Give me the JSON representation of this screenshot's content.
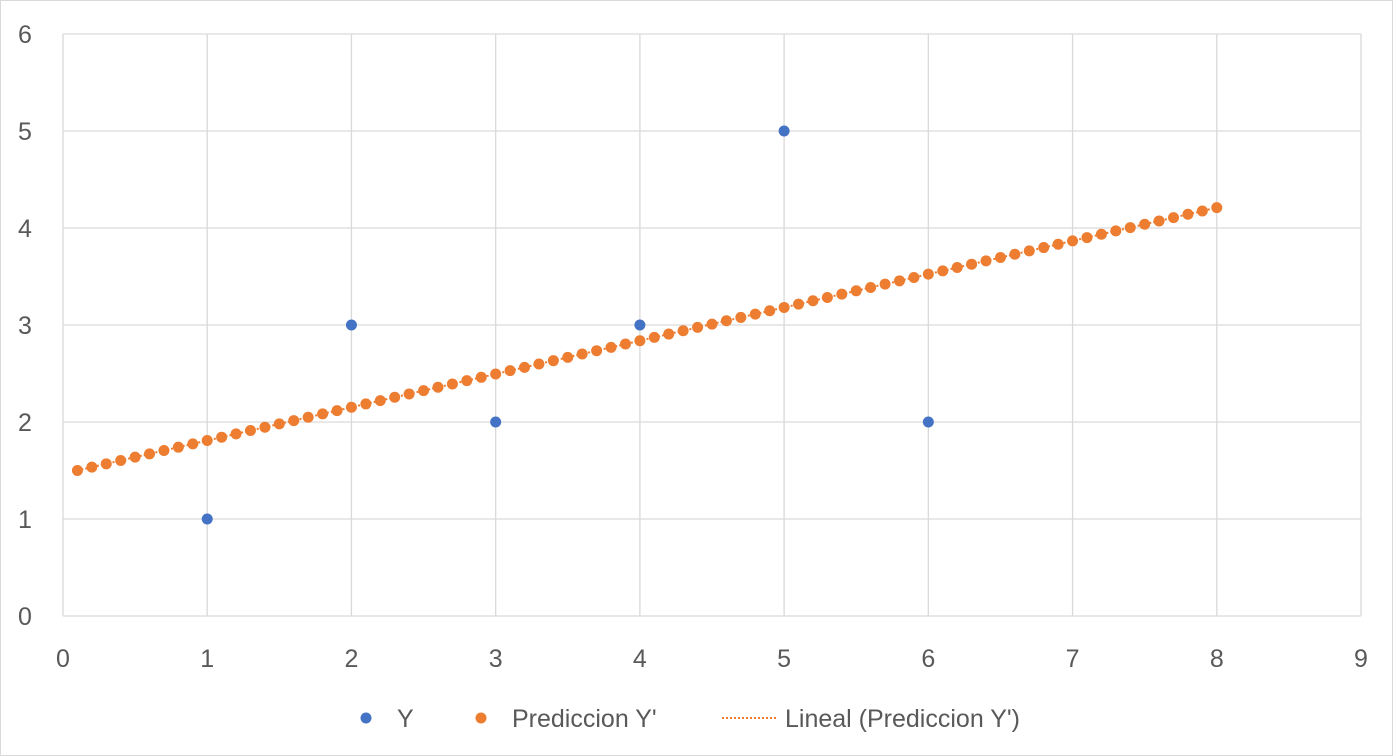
{
  "chart_data": {
    "type": "scatter",
    "title": "",
    "xlabel": "",
    "ylabel": "",
    "xlim": [
      0,
      9
    ],
    "ylim": [
      0,
      6
    ],
    "x_ticks": [
      "0",
      "1",
      "2",
      "3",
      "4",
      "5",
      "6",
      "7",
      "8",
      "9"
    ],
    "y_ticks": [
      "0",
      "1",
      "2",
      "3",
      "4",
      "5",
      "6"
    ],
    "grid": true,
    "legend_position": "bottom",
    "series": [
      {
        "name": "Y",
        "color": "#4472c4",
        "marker": "circle",
        "points": [
          [
            1,
            1
          ],
          [
            2,
            3
          ],
          [
            3,
            2
          ],
          [
            4,
            3
          ],
          [
            5,
            5
          ],
          [
            6,
            2
          ]
        ]
      },
      {
        "name": "Prediccion Y'",
        "color": "#ed7d31",
        "marker": "circle",
        "x_start": 0.1,
        "x_end": 8.0,
        "x_step": 0.1,
        "intercept": 1.466,
        "slope": 0.343
      }
    ],
    "trendline": {
      "name": "Lineal (Prediccion Y')",
      "color": "#ed7d31",
      "style": "dotted",
      "of_series": "Prediccion Y'"
    }
  }
}
